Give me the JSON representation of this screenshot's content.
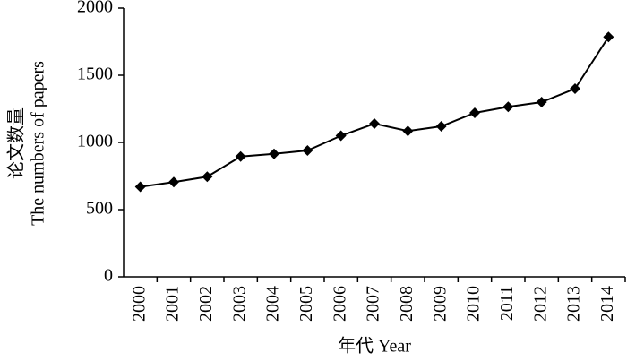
{
  "chart_data": {
    "type": "line",
    "y_label": [
      "论文数量",
      "The numbers of papers"
    ],
    "x_label": "年代 Year",
    "categories": [
      "2000",
      "2001",
      "2002",
      "2003",
      "2004",
      "2005",
      "2006",
      "2007",
      "2008",
      "2009",
      "2010",
      "2011",
      "2012",
      "2013",
      "2014"
    ],
    "values": [
      670,
      705,
      745,
      895,
      915,
      940,
      1050,
      1140,
      1085,
      1120,
      1220,
      1265,
      1300,
      1400,
      1785
    ],
    "color": "#000000",
    "ylim": [
      0,
      2000
    ],
    "yticks": [
      0,
      500,
      1000,
      1500,
      2000
    ],
    "grid": false
  }
}
